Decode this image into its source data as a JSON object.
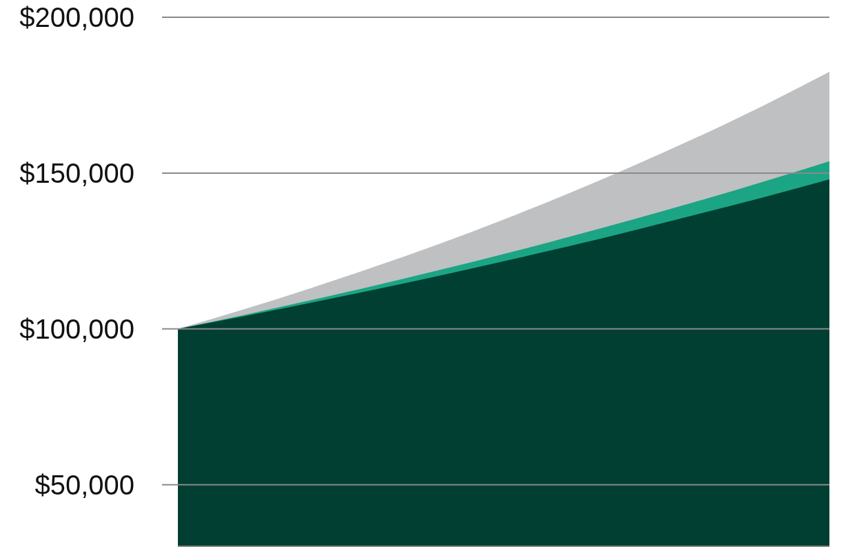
{
  "chart_data": {
    "type": "area",
    "categories": [
      null,
      null,
      null,
      null,
      null,
      null,
      null,
      null,
      null,
      null,
      null
    ],
    "series": [
      {
        "color": "#bfc0c2",
        "values": [
          100000,
          106200,
          112800,
          119800,
          127200,
          135100,
          143500,
          152400,
          161800,
          171800,
          182500
        ]
      },
      {
        "color": "#1ba584",
        "values": [
          100000,
          104400,
          109000,
          113800,
          118800,
          124000,
          129500,
          135200,
          141100,
          147300,
          153800
        ]
      },
      {
        "color": "#003f32",
        "values": [
          100000,
          104000,
          108200,
          112500,
          117000,
          121700,
          126500,
          131600,
          136900,
          142300,
          148000
        ]
      }
    ],
    "ylim": [
      30000,
      200000
    ],
    "yticks": [
      {
        "value": 50000,
        "label": "$50,000"
      },
      {
        "value": 100000,
        "label": "$100,000"
      },
      {
        "value": 150000,
        "label": "$150,000"
      },
      {
        "value": 200000,
        "label": "$200,000"
      }
    ],
    "grid": "y"
  }
}
